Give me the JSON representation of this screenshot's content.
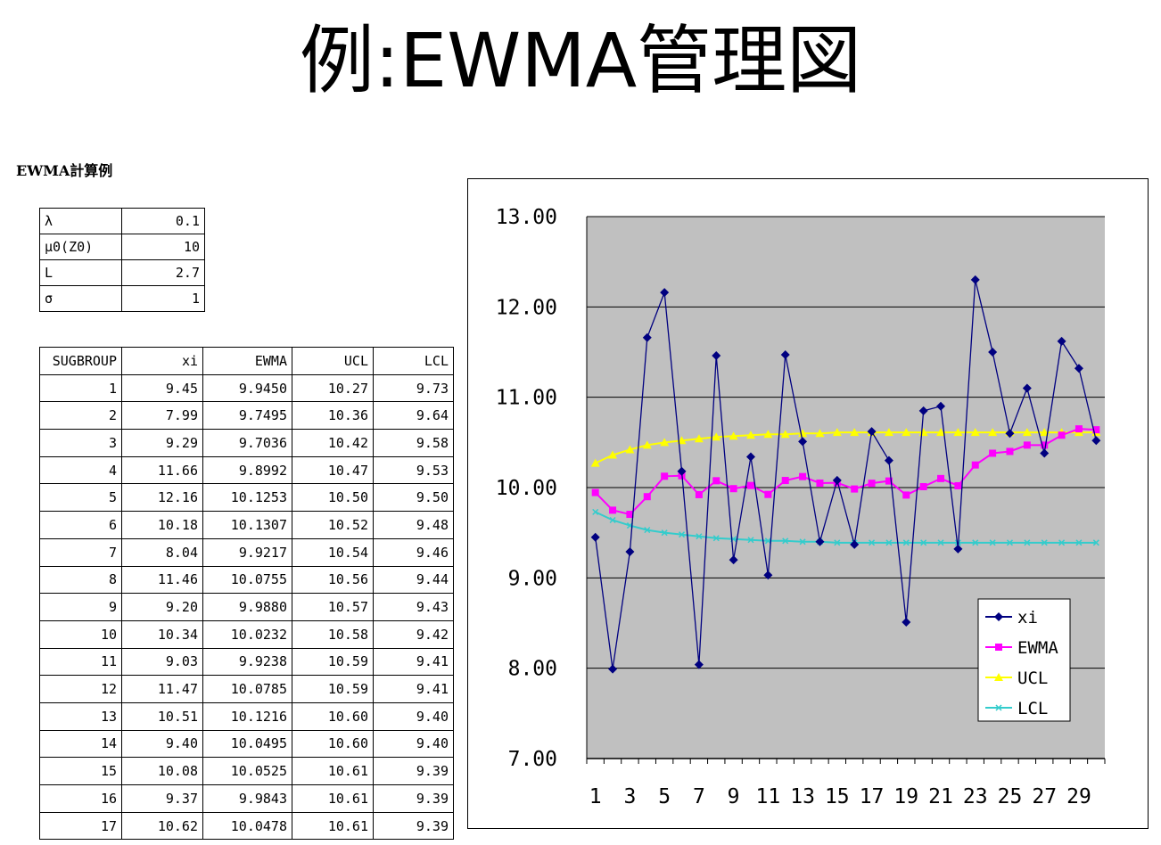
{
  "page": {
    "title": "例:EWMA管理図",
    "subtitle": "EWMA計算例"
  },
  "params": [
    {
      "label": "λ",
      "value": "0.1"
    },
    {
      "label": "μ0(Z0)",
      "value": "10"
    },
    {
      "label": "L",
      "value": "2.7"
    },
    {
      "label": "σ",
      "value": "1"
    }
  ],
  "table": {
    "headers": [
      "SUGBROUP",
      "xi",
      "EWMA",
      "UCL",
      "LCL"
    ],
    "rows": [
      [
        "1",
        "9.45",
        "9.9450",
        "10.27",
        "9.73"
      ],
      [
        "2",
        "7.99",
        "9.7495",
        "10.36",
        "9.64"
      ],
      [
        "3",
        "9.29",
        "9.7036",
        "10.42",
        "9.58"
      ],
      [
        "4",
        "11.66",
        "9.8992",
        "10.47",
        "9.53"
      ],
      [
        "5",
        "12.16",
        "10.1253",
        "10.50",
        "9.50"
      ],
      [
        "6",
        "10.18",
        "10.1307",
        "10.52",
        "9.48"
      ],
      [
        "7",
        "8.04",
        "9.9217",
        "10.54",
        "9.46"
      ],
      [
        "8",
        "11.46",
        "10.0755",
        "10.56",
        "9.44"
      ],
      [
        "9",
        "9.20",
        "9.9880",
        "10.57",
        "9.43"
      ],
      [
        "10",
        "10.34",
        "10.0232",
        "10.58",
        "9.42"
      ],
      [
        "11",
        "9.03",
        "9.9238",
        "10.59",
        "9.41"
      ],
      [
        "12",
        "11.47",
        "10.0785",
        "10.59",
        "9.41"
      ],
      [
        "13",
        "10.51",
        "10.1216",
        "10.60",
        "9.40"
      ],
      [
        "14",
        "9.40",
        "10.0495",
        "10.60",
        "9.40"
      ],
      [
        "15",
        "10.08",
        "10.0525",
        "10.61",
        "9.39"
      ],
      [
        "16",
        "9.37",
        "9.9843",
        "10.61",
        "9.39"
      ],
      [
        "17",
        "10.62",
        "10.0478",
        "10.61",
        "9.39"
      ]
    ]
  },
  "chart_data": {
    "type": "line",
    "title": "",
    "xlabel": "",
    "ylabel": "",
    "ylim": [
      7,
      13
    ],
    "y_ticks": [
      "7.00",
      "8.00",
      "9.00",
      "10.00",
      "11.00",
      "12.00",
      "13.00"
    ],
    "x": [
      1,
      2,
      3,
      4,
      5,
      6,
      7,
      8,
      9,
      10,
      11,
      12,
      13,
      14,
      15,
      16,
      17,
      18,
      19,
      20,
      21,
      22,
      23,
      24,
      25,
      26,
      27,
      28,
      29,
      30
    ],
    "x_tick_labels": [
      "1",
      "3",
      "5",
      "7",
      "9",
      "11",
      "13",
      "15",
      "17",
      "19",
      "21",
      "23",
      "25",
      "27",
      "29"
    ],
    "grid": true,
    "legend": "bottom-right",
    "plot_background": "#c0c0c0",
    "series": [
      {
        "name": "xi",
        "color": "#000080",
        "marker": "diamond",
        "values": [
          9.45,
          7.99,
          9.29,
          11.66,
          12.16,
          10.18,
          8.04,
          11.46,
          9.2,
          10.34,
          9.03,
          11.47,
          10.51,
          9.4,
          10.08,
          9.37,
          10.62,
          10.3,
          8.51,
          10.85,
          10.9,
          9.32,
          12.3,
          11.5,
          10.6,
          11.1,
          10.38,
          11.62,
          11.32,
          10.52
        ]
      },
      {
        "name": "EWMA",
        "color": "#ff00ff",
        "marker": "square",
        "values": [
          9.945,
          9.7495,
          9.7036,
          9.8992,
          10.1253,
          10.1307,
          9.9217,
          10.0755,
          9.988,
          10.0232,
          9.9238,
          10.0785,
          10.1216,
          10.0495,
          10.0525,
          9.9843,
          10.0478,
          10.073,
          9.917,
          10.01,
          10.1,
          10.02,
          10.25,
          10.38,
          10.4,
          10.47,
          10.47,
          10.58,
          10.65,
          10.64
        ]
      },
      {
        "name": "UCL",
        "color": "#ffff00",
        "marker": "triangle",
        "values": [
          10.27,
          10.36,
          10.42,
          10.47,
          10.5,
          10.52,
          10.54,
          10.56,
          10.57,
          10.58,
          10.59,
          10.59,
          10.6,
          10.6,
          10.61,
          10.61,
          10.61,
          10.61,
          10.61,
          10.61,
          10.61,
          10.61,
          10.61,
          10.61,
          10.61,
          10.61,
          10.61,
          10.61,
          10.61,
          10.61
        ]
      },
      {
        "name": "LCL",
        "color": "#33cccc",
        "marker": "x",
        "values": [
          9.73,
          9.64,
          9.58,
          9.53,
          9.5,
          9.48,
          9.46,
          9.44,
          9.43,
          9.42,
          9.41,
          9.41,
          9.4,
          9.4,
          9.39,
          9.39,
          9.39,
          9.39,
          9.39,
          9.39,
          9.39,
          9.39,
          9.39,
          9.39,
          9.39,
          9.39,
          9.39,
          9.39,
          9.39,
          9.39
        ]
      }
    ]
  }
}
